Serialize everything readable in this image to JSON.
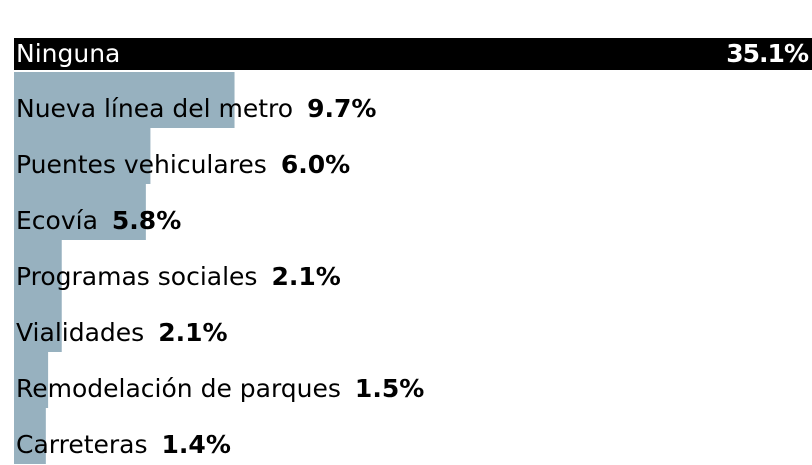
{
  "chart_data": {
    "type": "hbar",
    "categories": [
      "Ninguna",
      "Nueva línea del metro",
      "Puentes vehiculares",
      "Ecovía",
      "Programas sociales",
      "Vialidades",
      "Remodelación de parques",
      "Carreteras"
    ],
    "values": [
      35.1,
      9.7,
      6.0,
      5.8,
      2.1,
      2.1,
      1.5,
      1.4
    ],
    "value_labels": [
      "35.1%",
      "9.7%",
      "6.0%",
      "5.8%",
      "2.1%",
      "2.1%",
      "1.5%",
      "1.4%"
    ],
    "colors": [
      "#000000",
      "#97b1bf",
      "#97b1bf",
      "#97b1bf",
      "#97b1bf",
      "#97b1bf",
      "#97b1bf",
      "#97b1bf"
    ],
    "xlim": [
      0,
      35.1
    ]
  }
}
